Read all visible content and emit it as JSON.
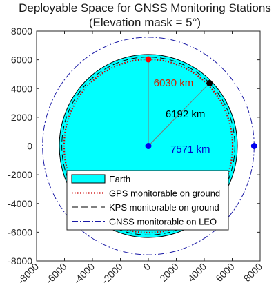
{
  "chart_data": {
    "type": "scatter",
    "title_line1": "Deployable Space for GNSS Monitoring Stations",
    "title_line2": "(Elevation mask = 5°)",
    "xlim": [
      -8000,
      8000
    ],
    "ylim": [
      -8000,
      8000
    ],
    "x_ticks": [
      -8000,
      -6000,
      -4000,
      -2000,
      0,
      2000,
      4000,
      6000,
      8000
    ],
    "y_ticks": [
      -8000,
      -6000,
      -4000,
      -2000,
      0,
      2000,
      4000,
      6000,
      8000
    ],
    "x_tick_labels": [
      "-8000",
      "-6000",
      "-4000",
      "-2000",
      "0",
      "2000",
      "4000",
      "6000",
      "8000"
    ],
    "y_tick_labels": [
      "-8000",
      "-6000",
      "-4000",
      "-2000",
      "0",
      "2000",
      "4000",
      "6000",
      "8000"
    ],
    "earth_radius": 6371,
    "circles": [
      {
        "name": "GPS monitorable on ground",
        "radius": 6030,
        "color": "#cc0000",
        "style": "dotted"
      },
      {
        "name": "KPS monitorable on ground",
        "radius": 6192,
        "color": "#000000",
        "style": "dashed"
      },
      {
        "name": "GNSS monitorable on LEO",
        "radius": 7571,
        "color": "#1a1aa6",
        "style": "dashdot"
      }
    ],
    "points": [
      {
        "name": "center",
        "x": 0,
        "y": 0,
        "color": "#0000ee"
      },
      {
        "name": "gps-point",
        "x": 0,
        "y": 6030,
        "color": "#ff0000"
      },
      {
        "name": "kps-point",
        "x": 4378,
        "y": 4378,
        "color": "#000000"
      },
      {
        "name": "leo-point",
        "x": 7571,
        "y": 0,
        "color": "#0000ee"
      }
    ],
    "annotations": [
      {
        "text": "6030 km",
        "x": 1800,
        "y": 4150,
        "color": "#cc2200"
      },
      {
        "text": "6192 km",
        "x": 2650,
        "y": 2000,
        "color": "#000000"
      },
      {
        "text": "7571 km",
        "x": 3000,
        "y": -450,
        "color": "#0000cc"
      }
    ],
    "legend": {
      "placement": "bottom",
      "entries": [
        {
          "label": "Earth",
          "kind": "patch",
          "color": "#00ffff"
        },
        {
          "label": "GPS monitorable on ground",
          "kind": "line",
          "color": "#cc0000",
          "style": "dotted"
        },
        {
          "label": "KPS monitorable on ground",
          "kind": "line",
          "color": "#000000",
          "style": "dashed"
        },
        {
          "label": "GNSS monitorable on LEO",
          "kind": "line",
          "color": "#1a1aa6",
          "style": "dashdot"
        }
      ]
    },
    "grid": false
  }
}
